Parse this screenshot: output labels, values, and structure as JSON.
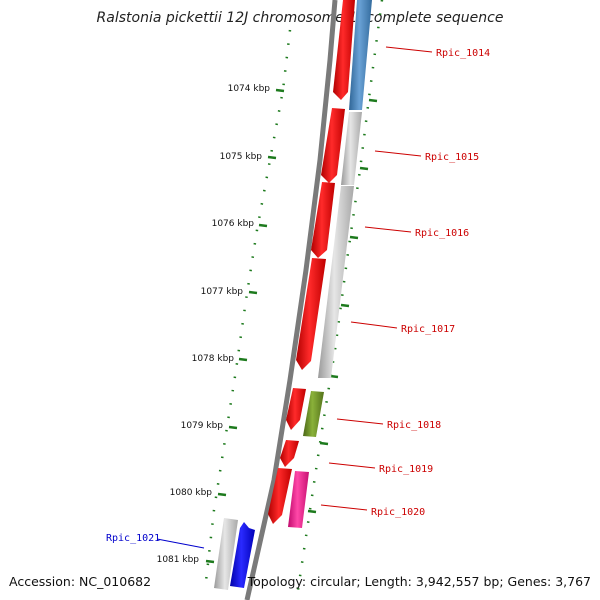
{
  "title": "Ralstonia pickettii 12J chromosome 1, complete sequence",
  "footer": {
    "accession": "Accession: NC_010682",
    "summary": "Topology: circular; Length: 3,942,557 bp; Genes: 3,767"
  },
  "colors": {
    "backbone": "#7a7a7a",
    "tick": "#1d7a1d",
    "label_red": "#cc0000",
    "label_blue": "#0000cc",
    "gene_red": "#ff0000",
    "gene_gray": "#c8c8c8",
    "gene_steelblue": "#4a86c0",
    "gene_olive": "#6b8e23",
    "gene_pink": "#ff1493",
    "gene_blue": "#0000ff"
  },
  "ticks": [
    {
      "kbp": 1074,
      "label": "1074 kbp"
    },
    {
      "kbp": 1075,
      "label": "1075 kbp"
    },
    {
      "kbp": 1076,
      "label": "1076 kbp"
    },
    {
      "kbp": 1077,
      "label": "1077 kbp"
    },
    {
      "kbp": 1078,
      "label": "1078 kbp"
    },
    {
      "kbp": 1079,
      "label": "1079 kbp"
    },
    {
      "kbp": 1080,
      "label": "1080 kbp"
    },
    {
      "kbp": 1081,
      "label": "1081 kbp"
    }
  ],
  "genes": [
    {
      "label": "Rpic_1014",
      "label_color": "red"
    },
    {
      "label": "Rpic_1015",
      "label_color": "red"
    },
    {
      "label": "Rpic_1016",
      "label_color": "red"
    },
    {
      "label": "Rpic_1017",
      "label_color": "red"
    },
    {
      "label": "Rpic_1018",
      "label_color": "red"
    },
    {
      "label": "Rpic_1019",
      "label_color": "red"
    },
    {
      "label": "Rpic_1020",
      "label_color": "red"
    },
    {
      "label": "Rpic_1021",
      "label_color": "blue"
    }
  ]
}
